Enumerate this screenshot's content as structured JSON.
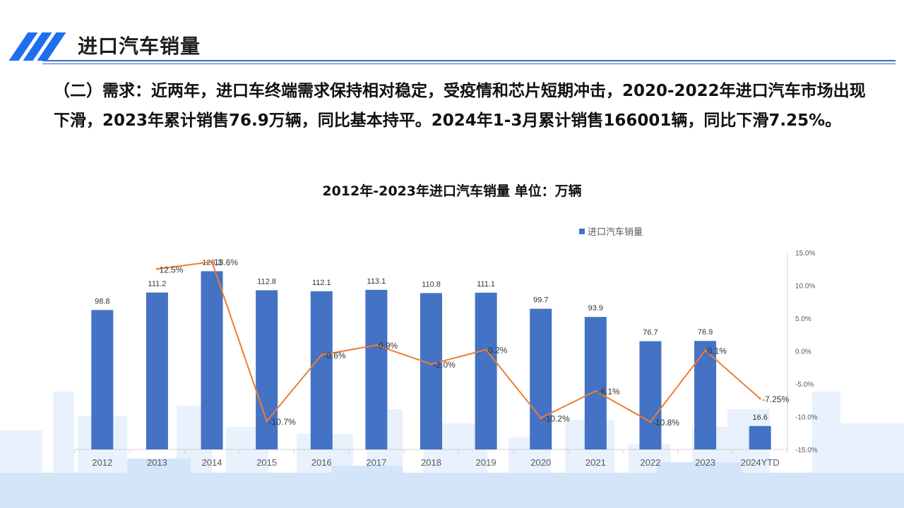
{
  "header": {
    "title": "进口汽车销量"
  },
  "description": "（二）需求：近两年，进口车终端需求保持相对稳定，受疫情和芯片短期冲击，2020-2022年进口汽车市场出现下滑，2023年累计销售76.9万辆，同比基本持平。2024年1-3月累计销售166001辆，同比下滑7.25%。",
  "chart_data": {
    "type": "bar",
    "title": "2012年-2023年进口汽车销量  单位：万辆",
    "categories": [
      "2012",
      "2013",
      "2014",
      "2015",
      "2016",
      "2017",
      "2018",
      "2019",
      "2020",
      "2021",
      "2022",
      "2023",
      "2024YTD"
    ],
    "series": [
      {
        "name": "进口汽车销量",
        "type": "bar",
        "axis": "left",
        "color": "#4472c4",
        "values": [
          98.8,
          111.2,
          126.3,
          112.8,
          112.1,
          113.1,
          110.8,
          111.1,
          99.7,
          93.9,
          76.7,
          76.9,
          16.6
        ],
        "labels": [
          "98.8",
          "111.2",
          "126.3",
          "112.8",
          "112.1",
          "113.1",
          "110.8",
          "111.1",
          "99.7",
          "93.9",
          "76.7",
          "76.9",
          "16.6"
        ]
      },
      {
        "type": "line",
        "axis": "right",
        "color": "#ed7d31",
        "values": [
          null,
          12.5,
          13.6,
          -10.7,
          -0.6,
          0.9,
          -2.0,
          0.2,
          -10.2,
          -6.1,
          -10.8,
          0.1,
          -7.25
        ],
        "labels": [
          "",
          "12.5%",
          "13.6%",
          "-10.7%",
          "-0.6%",
          "0.9%",
          "-2.0%",
          "0.2%",
          "-10.2%",
          "-6.1%",
          "-10.8%",
          "0.1%",
          "-7.25%"
        ]
      }
    ],
    "y2_ticks": [
      "15.0%",
      "10.0%",
      "5.0%",
      "0.0%",
      "-5.0%",
      "-10.0%",
      "-15.0%"
    ],
    "y2lim": [
      -15,
      15
    ],
    "legend": "top",
    "grid": false
  }
}
